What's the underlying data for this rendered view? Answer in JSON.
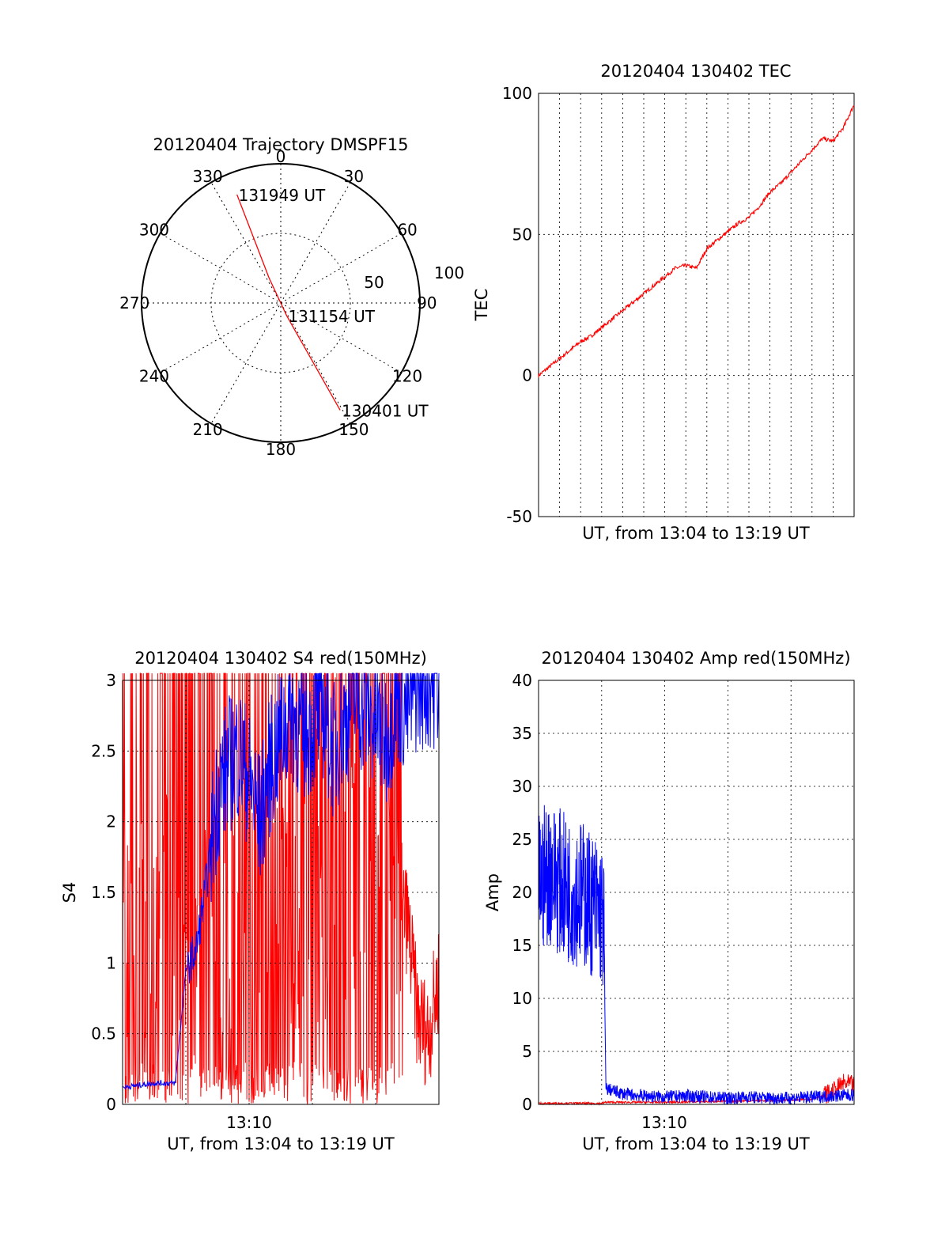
{
  "colors": {
    "red": "#ff0000",
    "blue": "#0000ff",
    "grid": "#000000"
  },
  "chart_data": [
    {
      "type": "polar",
      "title": "20120404 Trajectory DMSPF15",
      "angle_ticks": [
        "0",
        "30",
        "60",
        "90",
        "120",
        "150",
        "180",
        "210",
        "240",
        "270",
        "300",
        "330"
      ],
      "radius_max": 100,
      "radius_ticks": [
        "50",
        "100"
      ],
      "grid": "dotted",
      "series": [
        {
          "color": "#ff0000",
          "points": [
            {
              "azimuth": 151,
              "radius": 88
            },
            {
              "azimuth": 155,
              "radius": 10
            },
            {
              "azimuth": 335,
              "radius": 20
            },
            {
              "azimuth": 338,
              "radius": 84
            }
          ]
        }
      ],
      "annotations": [
        {
          "text": "130401 UT",
          "azimuth": 151,
          "radius": 88
        },
        {
          "text": "131154 UT",
          "azimuth": 155,
          "radius": 10
        },
        {
          "text": "131949 UT",
          "azimuth": 338,
          "radius": 84
        }
      ]
    },
    {
      "type": "line",
      "title": "20120404 130402 TEC",
      "xlabel": "UT, from 13:04 to 13:19 UT",
      "ylabel": "TEC",
      "x_minutes": [
        0,
        15
      ],
      "ylim": [
        -50,
        100
      ],
      "yticks": [
        "-50",
        "0",
        "50",
        "100"
      ],
      "grid": true,
      "series": [
        {
          "color": "#ff0000",
          "x": [
            0,
            0.5,
            1,
            1.5,
            2,
            2.5,
            3,
            3.5,
            4,
            4.5,
            5,
            5.5,
            6,
            6.5,
            7,
            7.5,
            8,
            8.5,
            9,
            9.5,
            10,
            10.5,
            11,
            11.5,
            12,
            12.5,
            13,
            13.5,
            14,
            14.5,
            15
          ],
          "y": [
            0,
            3,
            6,
            9,
            12,
            14,
            17,
            20,
            23,
            26,
            29,
            32,
            35,
            38,
            39,
            38,
            45,
            48,
            51,
            54,
            56,
            60,
            65,
            68,
            72,
            76,
            80,
            84,
            83,
            88,
            96
          ]
        }
      ]
    },
    {
      "type": "line",
      "title": "20120404 130402 S4 red(150MHz)",
      "xlabel": "UT, from 13:04 to 13:19 UT",
      "ylabel": "S4",
      "x_minutes": [
        0,
        15
      ],
      "xticks": [
        "13:10"
      ],
      "ylim": [
        0,
        3
      ],
      "yticks": [
        "0",
        "0.5",
        "1",
        "1.5",
        "2",
        "2.5",
        "3"
      ],
      "grid": true,
      "series": [
        {
          "color": "#ff0000",
          "x": [
            0,
            0.5,
            1,
            1.5,
            2,
            2.5,
            3,
            3.5,
            4,
            4.5,
            5,
            5.5,
            6,
            6.5,
            7,
            7.5,
            8,
            8.5,
            9,
            9.5,
            10,
            10.5,
            11,
            11.5,
            12,
            12.5,
            13,
            13.5,
            14,
            14.5,
            15
          ],
          "y": [
            1.5,
            1.5,
            1.5,
            1.5,
            1.5,
            1.5,
            1.0,
            1.2,
            1.5,
            1.6,
            1.6,
            1.7,
            1.8,
            1.7,
            1.6,
            1.5,
            1.5,
            1.7,
            1.9,
            1.8,
            2.0,
            2.2,
            2.3,
            2.2,
            2.0,
            1.8,
            1.5,
            1.3,
            0.6,
            0.5,
            0.9
          ]
        },
        {
          "color": "#0000ff",
          "x": [
            0,
            0.5,
            1,
            1.5,
            2,
            2.5,
            3,
            3.5,
            4,
            4.5,
            5,
            5.5,
            6,
            6.5,
            7,
            7.5,
            8,
            8.5,
            9,
            9.5,
            10,
            10.5,
            11,
            11.5,
            12,
            12.5,
            13,
            13.5,
            14,
            14.5,
            15
          ],
          "y": [
            0.12,
            0.13,
            0.14,
            0.15,
            0.15,
            0.15,
            0.95,
            1.1,
            1.6,
            2.2,
            2.4,
            2.5,
            2.3,
            2.0,
            2.4,
            2.6,
            2.8,
            2.6,
            2.7,
            2.8,
            2.5,
            2.7,
            2.9,
            2.8,
            2.7,
            2.6,
            2.9,
            2.8,
            3.0,
            3.0,
            3.0
          ]
        }
      ]
    },
    {
      "type": "line",
      "title": "20120404 130402 Amp red(150MHz)",
      "xlabel": "UT, from 13:04 to 13:19 UT",
      "ylabel": "Amp",
      "x_minutes": [
        0,
        15
      ],
      "xticks": [
        "13:10"
      ],
      "ylim": [
        0,
        40
      ],
      "yticks": [
        "0",
        "5",
        "10",
        "15",
        "20",
        "25",
        "30",
        "35",
        "40"
      ],
      "grid": true,
      "series": [
        {
          "color": "#0000ff",
          "x": [
            0,
            0.5,
            1,
            1.5,
            2,
            2.5,
            3,
            3.1,
            3.2,
            4,
            5,
            6,
            7,
            8,
            9,
            10,
            11,
            12,
            13,
            14,
            15
          ],
          "y": [
            21,
            22,
            21,
            20,
            20,
            19,
            18,
            17,
            1.5,
            1.0,
            0.8,
            0.7,
            0.8,
            0.7,
            0.6,
            0.7,
            0.6,
            0.6,
            0.7,
            0.8,
            0.9
          ]
        },
        {
          "color": "#ff0000",
          "x": [
            0,
            3,
            3.2,
            6,
            9,
            12,
            13,
            14,
            14.5,
            15
          ],
          "y": [
            0.1,
            0.1,
            0.2,
            0.2,
            0.3,
            0.4,
            0.5,
            1.2,
            2.0,
            1.8
          ]
        }
      ]
    }
  ]
}
